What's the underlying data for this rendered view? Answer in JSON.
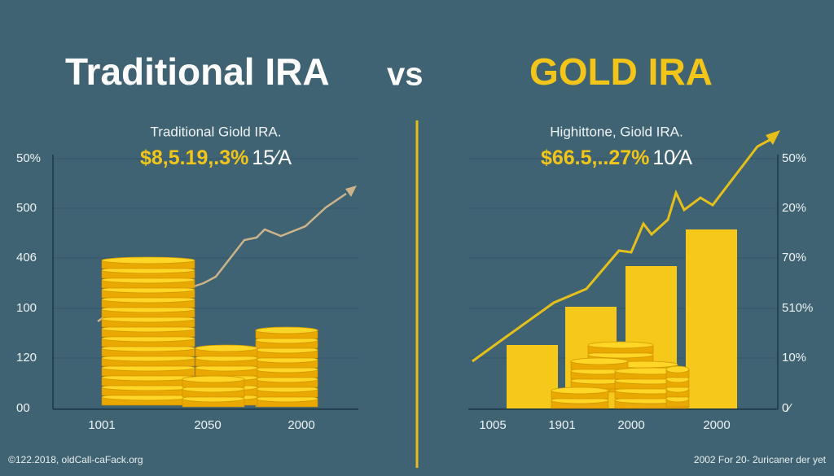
{
  "title": {
    "left": "Traditional IRA",
    "vs": "vs",
    "right": "GOLD IRA"
  },
  "panels": [
    {
      "subtitle": "Traditional Giold IRA.",
      "figure": "$8,5.19,.3%",
      "figure_suffix": "15⁄A",
      "axis_labels": [
        "50%",
        "500",
        "406",
        "100",
        "120",
        "00"
      ],
      "x_labels": [
        "1001",
        "2050",
        "2000"
      ]
    },
    {
      "subtitle": "Highittone, Giold IRA.",
      "figure": "$66.5,..27%",
      "figure_suffix": "10⁄A",
      "axis_labels": [
        "50%",
        "20%",
        "70%",
        "510%",
        "10%",
        "0⁄"
      ],
      "x_labels": [
        "1005",
        "1901",
        "2000",
        "2000"
      ]
    }
  ],
  "footer": {
    "left": "©122.2018, oldCall-caFack.org",
    "right": "2002 For 20- 2uricaner der yet"
  }
}
